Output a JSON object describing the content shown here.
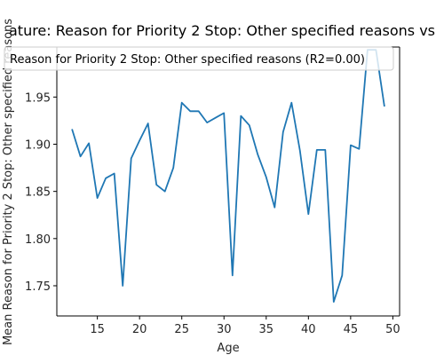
{
  "colors": {
    "series": "#1f77b4",
    "axes": "#000000",
    "background": "#ffffff"
  },
  "chart_data": {
    "type": "line",
    "title": "ature: Reason for Priority 2 Stop: Other specified reasons vs",
    "xlabel": "Age",
    "ylabel": "Mean Reason for Priority 2 Stop: Other specified reasons",
    "xlim": [
      10.2,
      50.8
    ],
    "ylim": [
      1.718,
      2.003
    ],
    "xticks": [
      15,
      20,
      25,
      30,
      35,
      40,
      45,
      50
    ],
    "yticks": [
      1.75,
      1.8,
      1.85,
      1.9,
      1.95
    ],
    "ytick_labels": [
      "1.75",
      "1.80",
      "1.85",
      "1.90",
      "1.95"
    ],
    "grid": false,
    "legend_position": "top-right",
    "legend": [
      "Reason for Priority 2 Stop: Other specified reasons (R2=0.00)"
    ],
    "series": [
      {
        "name": "Reason for Priority 2 Stop: Other specified reasons (R2=0.00)",
        "x": [
          12,
          13,
          14,
          15,
          16,
          17,
          18,
          19,
          20,
          21,
          22,
          23,
          24,
          25,
          26,
          27,
          28,
          29,
          30,
          31,
          32,
          33,
          34,
          35,
          36,
          37,
          38,
          39,
          40,
          41,
          42,
          43,
          44,
          45,
          46,
          47,
          48,
          49
        ],
        "values": [
          1.916,
          1.887,
          1.901,
          1.843,
          1.864,
          1.869,
          1.75,
          1.885,
          1.904,
          1.922,
          1.857,
          1.85,
          1.875,
          1.944,
          1.935,
          1.935,
          1.923,
          1.928,
          1.933,
          1.761,
          1.93,
          1.92,
          1.889,
          1.865,
          1.833,
          1.913,
          1.944,
          1.893,
          1.826,
          1.894,
          1.894,
          1.733,
          1.761,
          1.899,
          1.895,
          2.0,
          2.0,
          1.94
        ]
      }
    ]
  }
}
